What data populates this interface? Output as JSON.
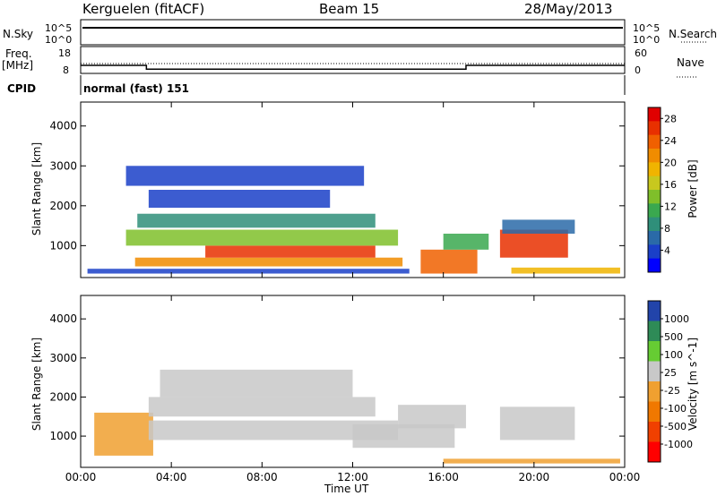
{
  "header": {
    "station": "Kerguelen (fitACF)",
    "beam": "Beam 15",
    "date": "28/May/2013"
  },
  "noise_panel": {
    "left_label": "N.Sky",
    "left_ticks": [
      "10^5",
      "10^0"
    ],
    "right_ticks": [
      "10^5",
      "10^0"
    ],
    "right_label": "N.Search"
  },
  "freq_panel": {
    "left_label_1": "Freq.",
    "left_label_2": "[MHz]",
    "left_ticks": [
      "18",
      "8"
    ],
    "right_ticks": [
      "60",
      "0"
    ],
    "right_label": "Nave",
    "freq_mhz": [
      {
        "from": 0.0,
        "to": 2.9,
        "value": 11.0
      },
      {
        "from": 2.9,
        "to": 17.0,
        "value": 9.6
      },
      {
        "from": 17.0,
        "to": 24.0,
        "value": 11.0
      }
    ],
    "nave": 22
  },
  "cpid_panel": {
    "label": "CPID",
    "mode": "normal (fast) 151"
  },
  "chart_data": [
    {
      "type": "heatmap",
      "title": "",
      "xlabel": "Time UT",
      "ylabel": "Slant Range [km]",
      "xlim": [
        0,
        24
      ],
      "ylim": [
        200,
        4600
      ],
      "x_ticks": [
        "00:00",
        "04:00",
        "08:00",
        "12:00",
        "16:00",
        "20:00",
        "00:00"
      ],
      "y_ticks": [
        "1000",
        "2000",
        "3000",
        "4000"
      ],
      "colorbar": {
        "label": "Power [dB]",
        "ticks": [
          "4",
          "8",
          "12",
          "16",
          "20",
          "24",
          "28"
        ],
        "range": [
          0,
          30
        ],
        "colors": [
          "#0000ff",
          "#1a3fc8",
          "#2a6aa8",
          "#2f8f7a",
          "#3aa84f",
          "#7fbf2a",
          "#c8c81e",
          "#f0b400",
          "#f08c00",
          "#f06000",
          "#e83000",
          "#e00000"
        ]
      },
      "regions": [
        {
          "t0": 0.3,
          "t1": 14.5,
          "r0": 300,
          "r1": 420,
          "value": 4
        },
        {
          "t0": 2.4,
          "t1": 14.2,
          "r0": 480,
          "r1": 700,
          "value": 22
        },
        {
          "t0": 5.5,
          "t1": 13.0,
          "r0": 700,
          "r1": 1000,
          "value": 26
        },
        {
          "t0": 2.0,
          "t1": 14.0,
          "r0": 1000,
          "r1": 1400,
          "value": 14
        },
        {
          "t0": 2.5,
          "t1": 13.0,
          "r0": 1450,
          "r1": 1800,
          "value": 8
        },
        {
          "t0": 3.0,
          "t1": 11.0,
          "r0": 1950,
          "r1": 2400,
          "value": 4
        },
        {
          "t0": 2.0,
          "t1": 12.5,
          "r0": 2500,
          "r1": 3000,
          "value": 4
        },
        {
          "t0": 15.0,
          "t1": 17.5,
          "r0": 300,
          "r1": 900,
          "value": 24
        },
        {
          "t0": 16.0,
          "t1": 18.0,
          "r0": 900,
          "r1": 1300,
          "value": 12
        },
        {
          "t0": 18.5,
          "t1": 21.5,
          "r0": 700,
          "r1": 1400,
          "value": 26
        },
        {
          "t0": 18.6,
          "t1": 21.8,
          "r0": 1300,
          "r1": 1650,
          "value": 6
        },
        {
          "t0": 19.0,
          "t1": 23.8,
          "r0": 300,
          "r1": 450,
          "value": 18
        }
      ]
    },
    {
      "type": "heatmap",
      "title": "",
      "xlabel": "Time UT",
      "ylabel": "Slant Range [km]",
      "xlim": [
        0,
        24
      ],
      "ylim": [
        200,
        4600
      ],
      "x_ticks": [
        "00:00",
        "04:00",
        "08:00",
        "12:00",
        "16:00",
        "20:00",
        "00:00"
      ],
      "y_ticks": [
        "1000",
        "2000",
        "3000",
        "4000"
      ],
      "colorbar": {
        "label": "Velocity [m s^-1]",
        "ticks": [
          "1000",
          "500",
          "100",
          "25",
          "-25",
          "-100",
          "-500",
          "-1000"
        ],
        "range": [
          -1200,
          1200
        ],
        "colors": [
          "#ff0000",
          "#f04000",
          "#f07800",
          "#f0a030",
          "#c8c8c8",
          "#66cc33",
          "#2e8b57",
          "#2244aa"
        ]
      },
      "regions": [
        {
          "t0": 0.6,
          "t1": 3.2,
          "r0": 500,
          "r1": 1600,
          "value": -200
        },
        {
          "t0": 3.0,
          "t1": 14.0,
          "r0": 900,
          "r1": 1400,
          "value": 0
        },
        {
          "t0": 3.0,
          "t1": 13.0,
          "r0": 1500,
          "r1": 2000,
          "value": 0
        },
        {
          "t0": 3.5,
          "t1": 12.0,
          "r0": 2000,
          "r1": 2700,
          "value": 0
        },
        {
          "t0": 12.0,
          "t1": 16.5,
          "r0": 700,
          "r1": 1300,
          "value": 150
        },
        {
          "t0": 14.0,
          "t1": 17.0,
          "r0": 1200,
          "r1": 1800,
          "value": 0
        },
        {
          "t0": 18.5,
          "t1": 21.8,
          "r0": 900,
          "r1": 1750,
          "value": 0
        },
        {
          "t0": 16.0,
          "t1": 23.8,
          "r0": 300,
          "r1": 420,
          "value": -150
        }
      ]
    }
  ]
}
